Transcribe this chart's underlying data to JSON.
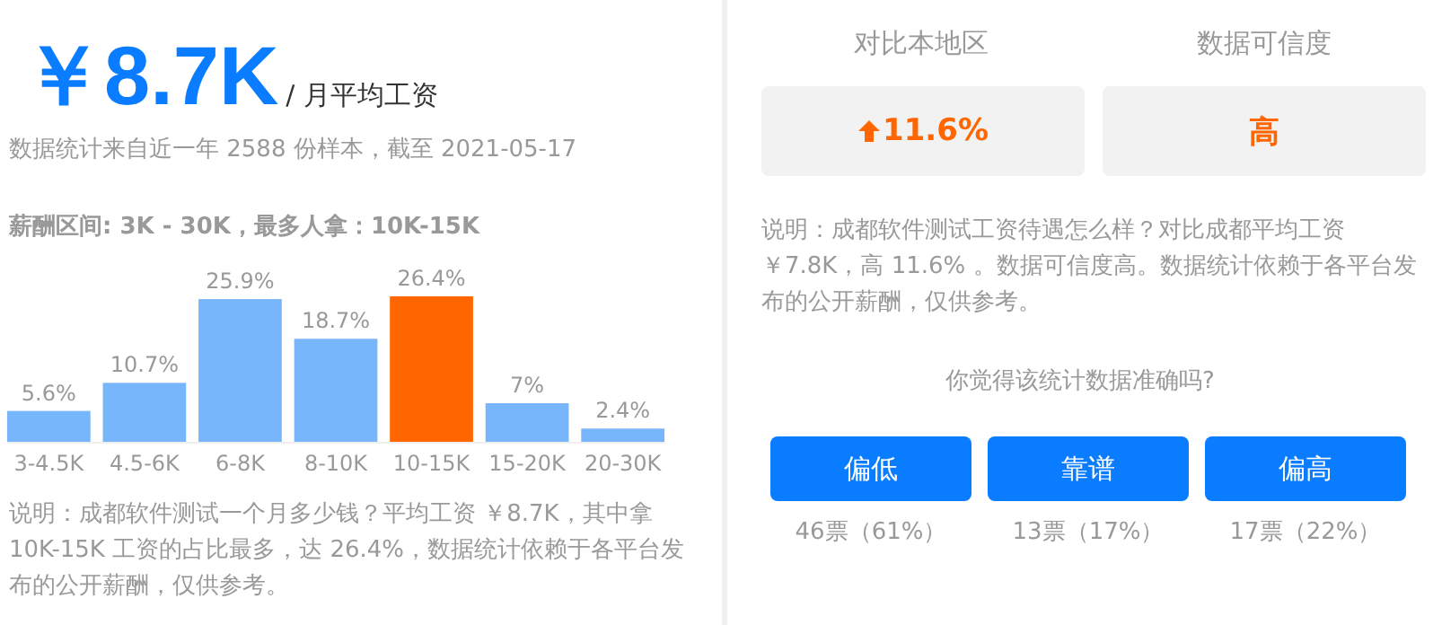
{
  "chart_data": [
    {
      "type": "bar",
      "title": "￥8.7K",
      "subtitle": "/ 月平均工资",
      "annotations": [
        "数据统计来自近一年 2588 份样本，截至 2021-05-17",
        "薪酬区间: 3K - 30K，最多人拿：10K-15K",
        "说明：成都软件测试一个月多少钱？平均工资 ￥8.7K，其中拿 10K-15K 工资的占比最多，达 26.4%，数据统计依赖于各平台发布的公开薪酬，仅供参考。"
      ],
      "categories": [
        "3-4.5K",
        "4.5-6K",
        "6-8K",
        "8-10K",
        "10-15K",
        "15-20K",
        "20-30K"
      ],
      "values": [
        5.6,
        10.7,
        25.9,
        18.7,
        26.4,
        7,
        2.4
      ],
      "value_labels": [
        "5.6%",
        "10.7%",
        "25.9%",
        "18.7%",
        "26.4%",
        "7%",
        "2.4%"
      ],
      "colors": [
        "#78b6fc",
        "#78b6fc",
        "#78b6fc",
        "#78b6fc",
        "#ff6600",
        "#78b6fc",
        "#78b6fc"
      ]
    },
    {
      "type": "other",
      "annotations": [
        "对比本地区",
        "数据可信度",
        "11.6%",
        "高",
        "说明：成都软件测试工资待遇怎么样？对比成都平均工资￥7.8K，高 11.6% 。数据可信度高。数据统计依赖于各平台发布的公开薪酬，仅供参考。",
        "你觉得该统计数据准确吗?",
        "偏低",
        "靠谱",
        "偏高",
        "46票（61%）",
        "13票（17%）",
        "17票（22%）"
      ]
    }
  ]
}
